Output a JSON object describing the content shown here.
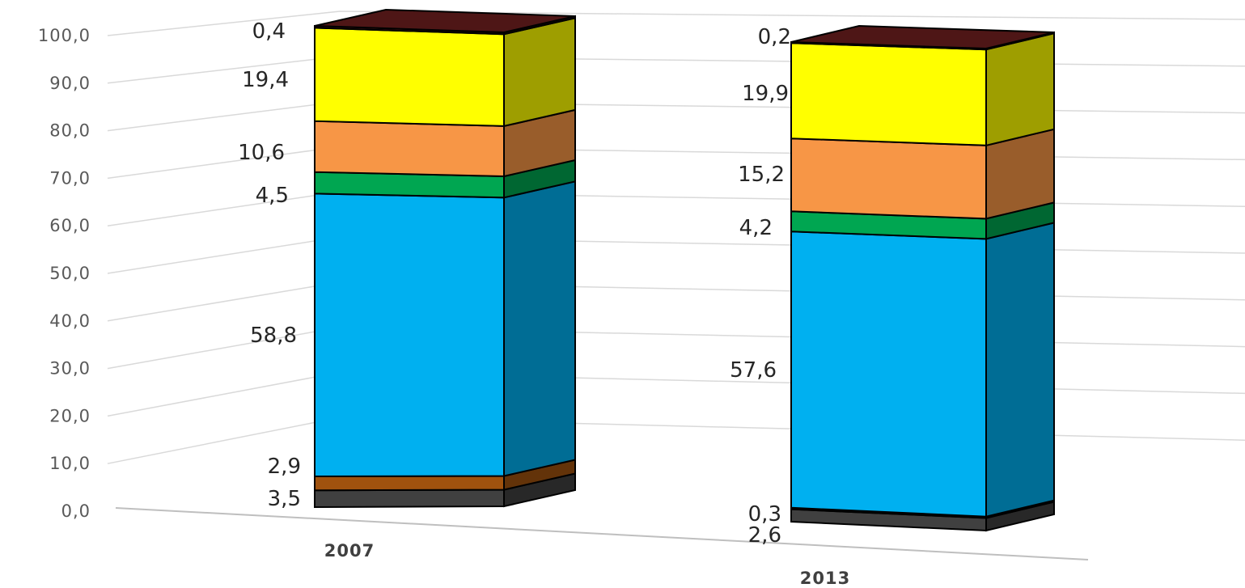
{
  "chart_data": {
    "type": "bar",
    "stacked": true,
    "three_d": true,
    "grid": true,
    "legend": "none",
    "ylim": [
      0,
      100
    ],
    "y_ticks": [
      "0,0",
      "10,0",
      "20,0",
      "30,0",
      "40,0",
      "50,0",
      "60,0",
      "70,0",
      "80,0",
      "90,0",
      "100,0"
    ],
    "categories": [
      "2007",
      "2013"
    ],
    "series": [
      {
        "color": "#404040",
        "values": [
          3.5,
          2.6
        ],
        "labels": [
          "3,5",
          "2,6"
        ]
      },
      {
        "color": "#a0520e",
        "values": [
          2.9,
          0.3
        ],
        "labels": [
          "2,9",
          "0,3"
        ]
      },
      {
        "color": "#00b0f0",
        "values": [
          58.8,
          57.6
        ],
        "labels": [
          "58,8",
          "57,6"
        ]
      },
      {
        "color": "#00a651",
        "values": [
          4.5,
          4.2
        ],
        "labels": [
          "4,5",
          "4,2"
        ]
      },
      {
        "color": "#f79646",
        "values": [
          10.6,
          15.2
        ],
        "labels": [
          "10,6",
          "15,2"
        ]
      },
      {
        "color": "#ffff00",
        "values": [
          19.4,
          19.9
        ],
        "labels": [
          "19,4",
          "19,9"
        ]
      },
      {
        "color": "#5c1a1a",
        "values": [
          0.4,
          0.2
        ],
        "labels": [
          "0,4",
          "0,2"
        ]
      }
    ]
  }
}
